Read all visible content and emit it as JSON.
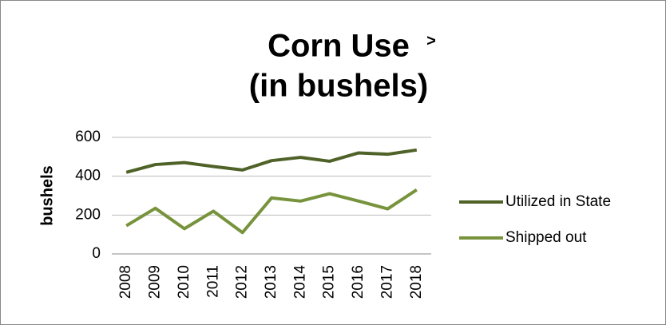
{
  "chart_data": {
    "type": "line",
    "title": [
      "Corn Use",
      "(in bushels)"
    ],
    "annotation": ">",
    "y_label": "bushels",
    "categories": [
      "2008",
      "2009",
      "2010",
      "2011",
      "2012",
      "2013",
      "2014",
      "2015",
      "2016",
      "2017",
      "2018"
    ],
    "series": [
      {
        "name": "Utilized in State",
        "color": "#4f6228",
        "values": [
          420,
          460,
          470,
          450,
          432,
          480,
          497,
          477,
          520,
          513,
          535
        ]
      },
      {
        "name": "Shipped out",
        "color": "#77933c",
        "values": [
          145,
          235,
          130,
          220,
          110,
          288,
          272,
          310,
          272,
          232,
          330
        ]
      }
    ],
    "ylim": [
      0,
      600
    ],
    "yticks": [
      0,
      200,
      400,
      600
    ],
    "grid": true,
    "legend": "right"
  }
}
